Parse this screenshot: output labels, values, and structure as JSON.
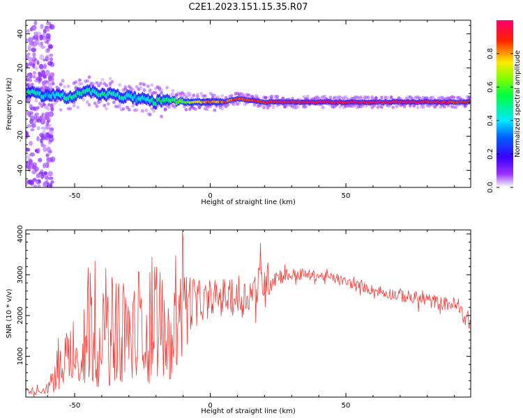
{
  "figure": {
    "title": "C2E1.2023.151.15.35.R07"
  },
  "chart_data": [
    {
      "type": "heatmap",
      "xlabel": "Height of straight line (km)",
      "ylabel": "Frequency (Hz)",
      "xlim": [
        -68,
        96
      ],
      "ylim": [
        -50,
        48
      ],
      "x_ticks": [
        -50,
        0,
        50
      ],
      "y_ticks": [
        -40,
        -20,
        0,
        20,
        40
      ],
      "colorbar": {
        "label": "Normalized spectral amplitude",
        "range": [
          0,
          1
        ],
        "ticks": [
          0.0,
          0.2,
          0.4,
          0.6,
          0.8
        ],
        "tick_labels": [
          "0.0",
          "0.2",
          "0.4",
          "0.6",
          "0.8"
        ],
        "colormap": "gist_rainbow_r (white → violet → blue → cyan → green → yellow → red)"
      },
      "ridge": {
        "description": "Narrow high-amplitude ridge of frequency vs height",
        "x": [
          -66,
          -60,
          -55,
          -50,
          -45,
          -40,
          -35,
          -30,
          -25,
          -20,
          -15,
          -10,
          -5,
          0,
          5,
          10,
          15,
          20,
          30,
          40,
          50,
          60,
          70,
          80,
          90,
          96
        ],
        "frequency": [
          5,
          4,
          3,
          4,
          6,
          5,
          4,
          3,
          2,
          0,
          1,
          0,
          0,
          0,
          0,
          2,
          1,
          0,
          0,
          0,
          0,
          0,
          0,
          0,
          0,
          0
        ],
        "amplitude": [
          0.45,
          0.4,
          0.45,
          0.5,
          0.45,
          0.5,
          0.45,
          0.45,
          0.4,
          0.5,
          0.55,
          0.6,
          0.75,
          0.8,
          0.85,
          0.9,
          0.85,
          0.9,
          0.95,
          0.95,
          0.95,
          0.95,
          0.95,
          0.95,
          0.9,
          0.85
        ]
      },
      "noise_region": {
        "x_range": [
          -68,
          -58
        ],
        "frequency_range": [
          -50,
          48
        ],
        "amplitude": 0.1
      }
    },
    {
      "type": "line",
      "xlabel": "Height of straight line (km)",
      "ylabel": "SNR (10 * v/v)",
      "xlim": [
        -68,
        96
      ],
      "ylim": [
        0,
        4100
      ],
      "x_ticks": [
        -50,
        0,
        50
      ],
      "y_ticks": [
        1000,
        2000,
        3000,
        4000
      ],
      "series": [
        {
          "color": "#ee3b36",
          "envelope_x": [
            -68,
            -60,
            -55,
            -50,
            -45,
            -40,
            -35,
            -30,
            -25,
            -20,
            -15,
            -10,
            -5,
            0,
            5,
            10,
            15,
            20,
            25,
            30,
            35,
            40,
            45,
            50,
            55,
            60,
            65,
            70,
            75,
            80,
            85,
            90,
            96
          ],
          "envelope_lower": [
            0,
            0,
            150,
            250,
            250,
            250,
            250,
            250,
            300,
            300,
            400,
            800,
            1300,
            1800,
            1700,
            1600,
            1700,
            1900,
            2600,
            2700,
            2750,
            2750,
            2700,
            2600,
            2500,
            2400,
            2300,
            2200,
            2100,
            2050,
            2000,
            1950,
            1400
          ],
          "envelope_upper": [
            300,
            350,
            1900,
            2000,
            3350,
            2500,
            3200,
            2650,
            3400,
            3400,
            3000,
            4050,
            3300,
            2900,
            3300,
            3150,
            3400,
            3800,
            3350,
            3300,
            3250,
            3200,
            3150,
            3050,
            2950,
            2850,
            2800,
            2800,
            2750,
            2700,
            2600,
            2600,
            2250
          ],
          "spikes": [
            {
              "x": -50.5,
              "y": 1850
            },
            {
              "x": -42.5,
              "y": 3340
            },
            {
              "x": -38.5,
              "y": 3160
            },
            {
              "x": -21.5,
              "y": 3430
            },
            {
              "x": -10.2,
              "y": 4060
            },
            {
              "x": 18.5,
              "y": 3780
            }
          ]
        }
      ]
    }
  ]
}
